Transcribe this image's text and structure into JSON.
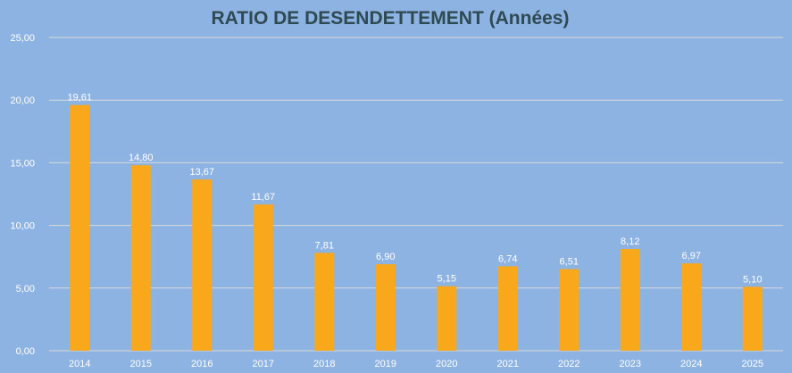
{
  "chart_data": {
    "type": "bar",
    "title": "RATIO DE DESENDETTEMENT (Années)",
    "xlabel": "",
    "ylabel": "",
    "categories": [
      "2014",
      "2015",
      "2016",
      "2017",
      "2018",
      "2019",
      "2020",
      "2021",
      "2022",
      "2023",
      "2024",
      "2025"
    ],
    "values": [
      19.61,
      14.8,
      13.67,
      11.67,
      7.81,
      6.9,
      5.15,
      6.74,
      6.51,
      8.12,
      6.97,
      5.1
    ],
    "value_labels": [
      "19,61",
      "14,80",
      "13,67",
      "11,67",
      "7,81",
      "6,90",
      "5,15",
      "6,74",
      "6,51",
      "8,12",
      "6,97",
      "5,10"
    ],
    "ylim": [
      0,
      25
    ],
    "yticks": [
      0,
      5,
      10,
      15,
      20,
      25
    ],
    "ytick_labels": [
      "0,00",
      "5,00",
      "10,00",
      "15,00",
      "20,00",
      "25,00"
    ],
    "grid": true,
    "legend": "none",
    "colors": {
      "bar": "#f8a81a",
      "background": "#8db3e3",
      "grid": "#d9d9d9",
      "title": "#2f4a52"
    }
  }
}
